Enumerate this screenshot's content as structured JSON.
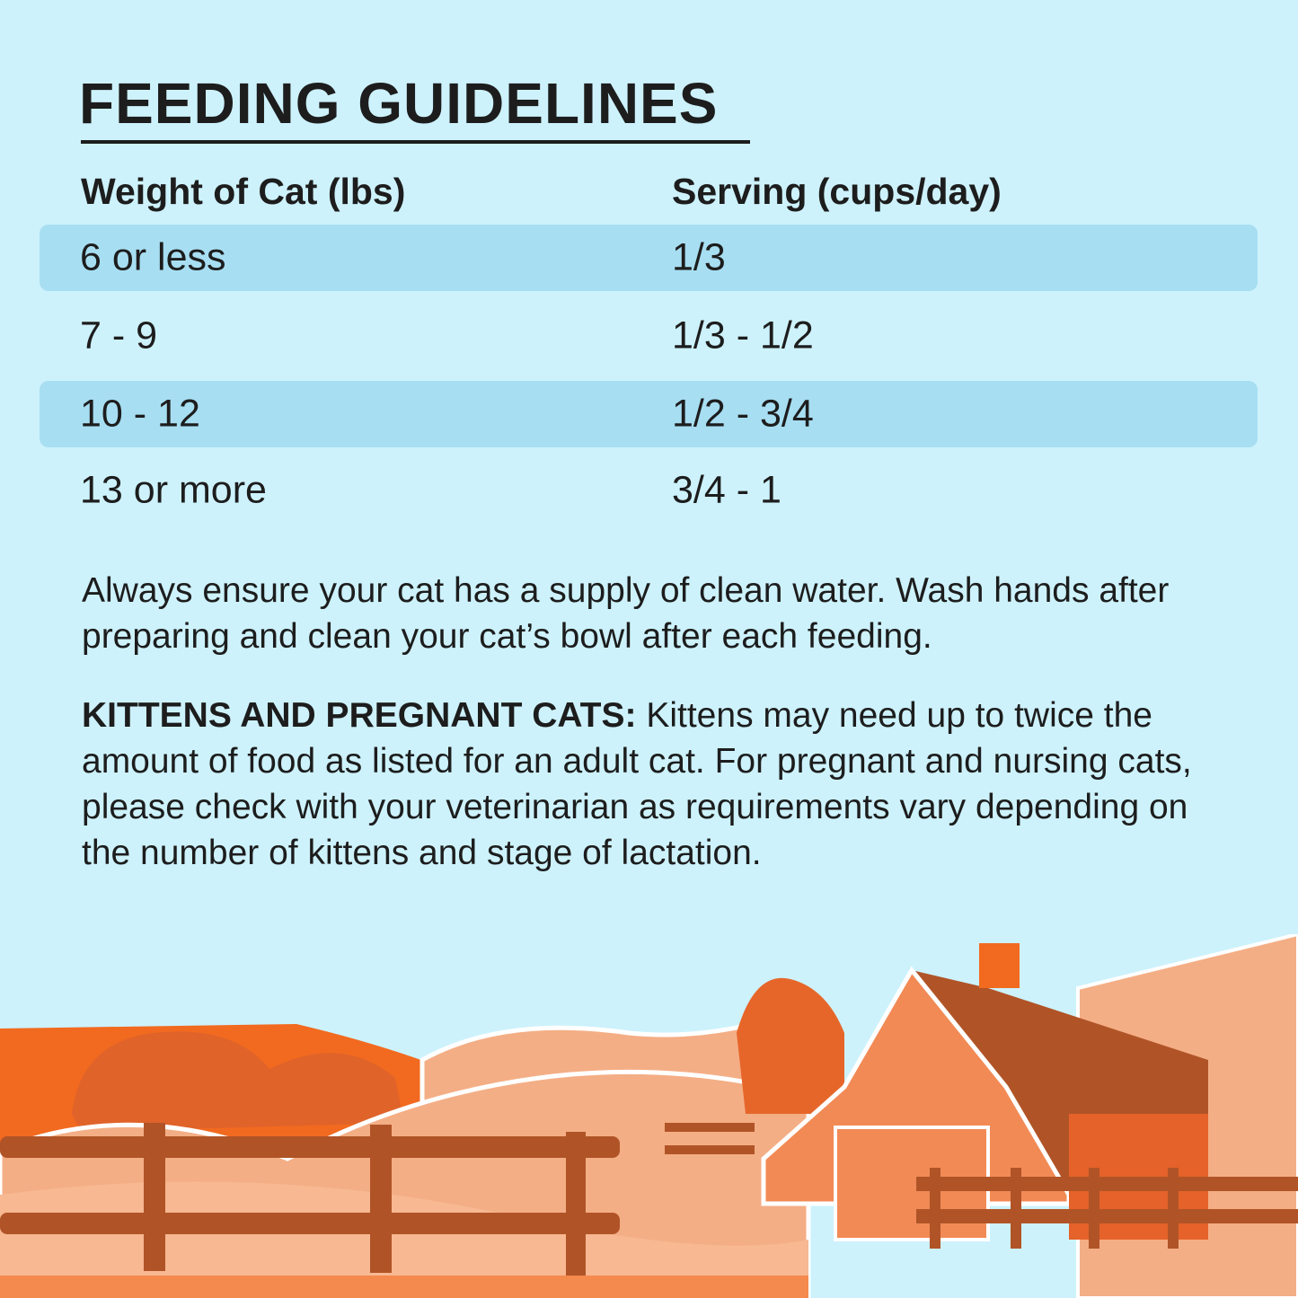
{
  "title": "FEEDING GUIDELINES",
  "table": {
    "headers": [
      "Weight of Cat (lbs)",
      "Serving (cups/day)"
    ],
    "rows": [
      {
        "weight": "6 or less",
        "serving": "1/3"
      },
      {
        "weight": "7 - 9",
        "serving": "1/3 - 1/2"
      },
      {
        "weight": "10 - 12",
        "serving": "1/2 - 3/4"
      },
      {
        "weight": "13 or more",
        "serving": "3/4 - 1"
      }
    ]
  },
  "note": "Always ensure your cat has a supply of clean water. Wash hands after preparing and clean your cat’s bowl after each feeding.",
  "kittens": {
    "label": "KITTENS AND PREGNANT CATS:",
    "text": " Kittens may need up to twice the amount of food as listed for an adult cat. For pregnant and nursing cats, please check with your veterinarian as requirements vary depending on the number of kittens and stage of lactation."
  },
  "colors": {
    "background": "#cdf2fc",
    "row_highlight": "#a7def2",
    "orange": "#f26a1f",
    "brown": "#b05427",
    "peach": "#f4ae85"
  }
}
